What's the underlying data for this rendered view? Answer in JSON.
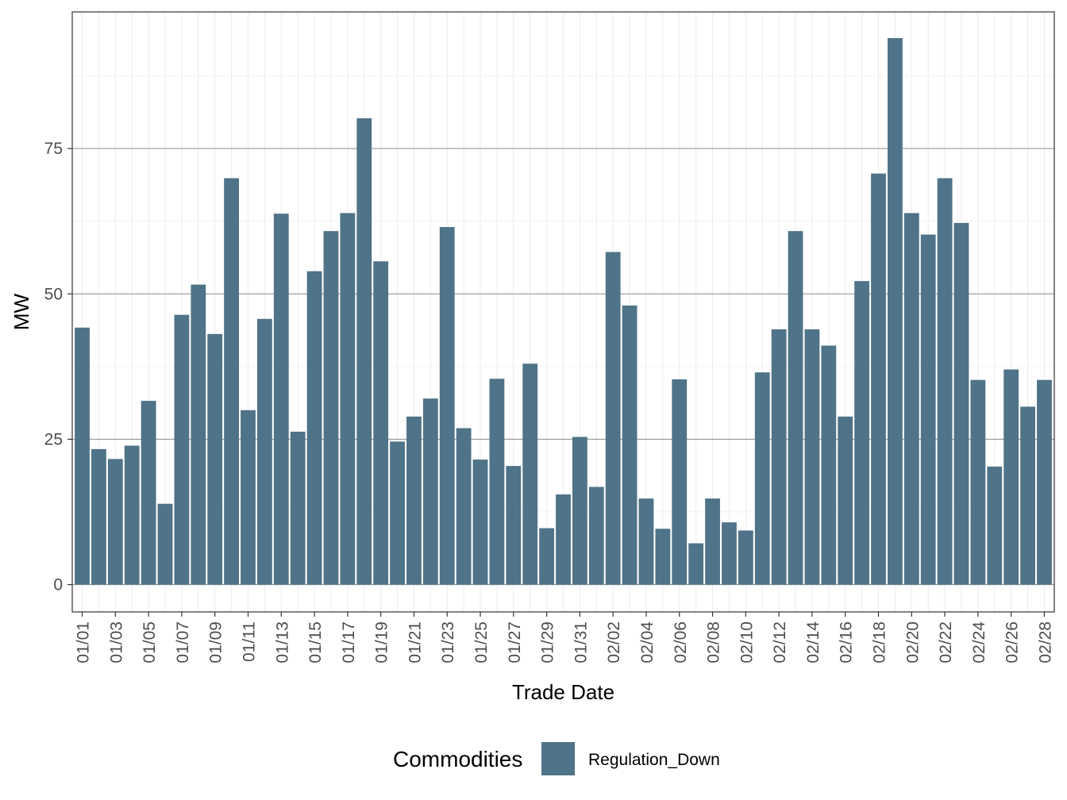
{
  "chart_data": {
    "type": "bar",
    "xlabel": "Trade Date",
    "ylabel": "MW",
    "ylim": [
      -4.7,
      98.5
    ],
    "yticks": [
      0,
      25,
      50,
      75
    ],
    "grid": true,
    "legend_position": "bottom",
    "legend_title": "Commodities",
    "series": [
      {
        "name": "Regulation_Down",
        "color": "#4f7388",
        "values": [
          44.2,
          23.3,
          21.6,
          23.9,
          31.6,
          13.9,
          46.4,
          51.6,
          43.1,
          69.9,
          30.0,
          45.7,
          63.8,
          26.3,
          53.9,
          60.8,
          63.9,
          80.2,
          55.6,
          24.6,
          28.9,
          32.0,
          61.5,
          26.9,
          21.5,
          35.4,
          20.4,
          38.0,
          9.7,
          15.5,
          25.4,
          16.8,
          57.2,
          48.0,
          14.8,
          9.6,
          35.3,
          7.1,
          14.8,
          10.7,
          9.3,
          36.5,
          43.9,
          60.8,
          43.9,
          41.1,
          28.9,
          52.2,
          70.7,
          94.0,
          63.9,
          60.2,
          69.9,
          62.2,
          35.2,
          20.3,
          37.0,
          30.6,
          35.2
        ],
        "categories": [
          "01/01",
          "01/02",
          "01/03",
          "01/04",
          "01/05",
          "01/06",
          "01/07",
          "01/08",
          "01/09",
          "01/10",
          "01/11",
          "01/12",
          "01/13",
          "01/14",
          "01/15",
          "01/16",
          "01/17",
          "01/18",
          "01/19",
          "01/20",
          "01/21",
          "01/22",
          "01/23",
          "01/24",
          "01/25",
          "01/26",
          "01/27",
          "01/28",
          "01/29",
          "01/30",
          "01/31",
          "02/01",
          "02/02",
          "02/03",
          "02/04",
          "02/05",
          "02/06",
          "02/07",
          "02/08",
          "02/09",
          "02/10",
          "02/11",
          "02/12",
          "02/13",
          "02/14",
          "02/15",
          "02/16",
          "02/17",
          "02/18",
          "02/19",
          "02/20",
          "02/21",
          "02/22",
          "02/23",
          "02/24",
          "02/25",
          "02/26",
          "02/27",
          "02/28"
        ]
      }
    ],
    "xtick_labels": [
      "01/01",
      "01/03",
      "01/05",
      "01/07",
      "01/09",
      "01/11",
      "01/13",
      "01/15",
      "01/17",
      "01/19",
      "01/21",
      "01/23",
      "01/25",
      "01/27",
      "01/29",
      "01/31",
      "02/02",
      "02/04",
      "02/06",
      "02/08",
      "02/10",
      "02/12",
      "02/14",
      "02/16",
      "02/18",
      "02/20",
      "02/22",
      "02/24",
      "02/26",
      "02/28"
    ]
  }
}
